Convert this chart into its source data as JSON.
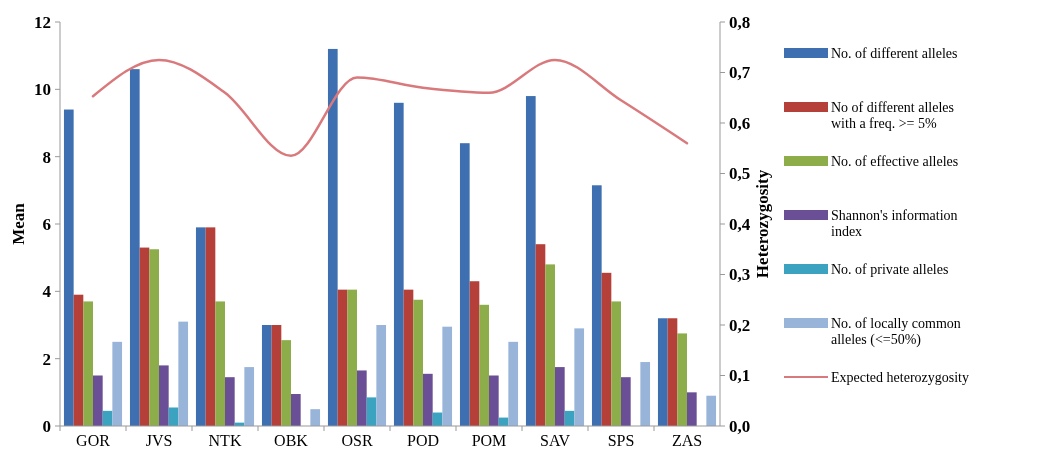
{
  "chart_data": {
    "type": "bar",
    "ylabel": "Mean",
    "y2label": "Heterozygosity",
    "categories": [
      "GOR",
      "JVS",
      "NTK",
      "OBK",
      "OSR",
      "POD",
      "POM",
      "SAV",
      "SPS",
      "ZAS"
    ],
    "ylim": [
      0,
      12
    ],
    "yticks": [
      0,
      2,
      4,
      6,
      8,
      10,
      12
    ],
    "y2lim": [
      0,
      0.8
    ],
    "y2ticks": [
      {
        "value": 0,
        "label": "0,0"
      },
      {
        "value": 0.1,
        "label": "0,1"
      },
      {
        "value": 0.2,
        "label": "0,2"
      },
      {
        "value": 0.3,
        "label": "0,3"
      },
      {
        "value": 0.4,
        "label": "0,4"
      },
      {
        "value": 0.5,
        "label": "0,5"
      },
      {
        "value": 0.6,
        "label": "0,6"
      },
      {
        "value": 0.7,
        "label": "0,7"
      },
      {
        "value": 0.8,
        "label": "0,8"
      }
    ],
    "legend": "right",
    "grid": false,
    "marker": "none",
    "series": [
      {
        "name": "No. of different alleles",
        "color": "#3e6fb0",
        "values": [
          9.4,
          10.6,
          5.9,
          3.0,
          11.2,
          9.6,
          8.4,
          9.8,
          7.15,
          3.2
        ]
      },
      {
        "name": "No of different alleles with a freq. >= 5%",
        "color": "#b5403a",
        "values": [
          3.9,
          5.3,
          5.9,
          3.0,
          4.05,
          4.05,
          4.3,
          5.4,
          4.55,
          3.2
        ]
      },
      {
        "name": "No. of effective alleles",
        "color": "#8cad4a",
        "values": [
          3.7,
          5.25,
          3.7,
          2.55,
          4.05,
          3.75,
          3.6,
          4.8,
          3.7,
          2.75
        ]
      },
      {
        "name": "Shannon's information index",
        "color": "#6b4f96",
        "values": [
          1.5,
          1.8,
          1.45,
          0.95,
          1.65,
          1.55,
          1.5,
          1.75,
          1.45,
          1.0
        ]
      },
      {
        "name": "No. of private alleles",
        "color": "#3ba3bf",
        "values": [
          0.45,
          0.55,
          0.1,
          0,
          0.85,
          0.4,
          0.25,
          0.45,
          0,
          0
        ]
      },
      {
        "name": "No. of locally common alleles (<=50%)",
        "color": "#98b5d9",
        "values": [
          2.5,
          3.1,
          1.75,
          0.5,
          3.0,
          2.95,
          2.5,
          2.9,
          1.9,
          0.9
        ]
      },
      {
        "name": "Expected heterozygosity",
        "type": "line",
        "axis": "y2",
        "color": "#d9797c",
        "values": [
          0.653,
          0.725,
          0.66,
          0.535,
          0.69,
          0.67,
          0.66,
          0.725,
          0.645,
          0.56
        ]
      }
    ]
  }
}
